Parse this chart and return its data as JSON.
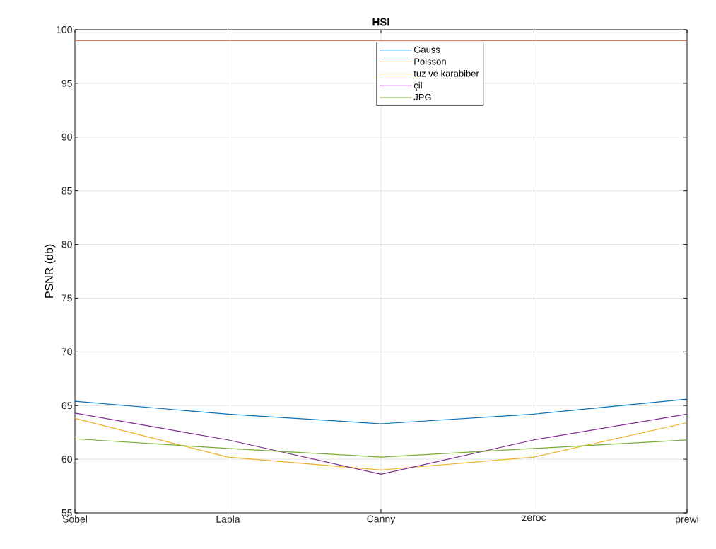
{
  "chart_data": {
    "type": "line",
    "title": "HSI",
    "ylabel": "PSNR (db)",
    "categories": [
      "Sobel",
      "Lapla",
      "Canny",
      "zeroc",
      "prewi"
    ],
    "series": [
      {
        "name": "Gauss",
        "color": "#0072bd",
        "values": [
          65.4,
          64.2,
          63.3,
          64.2,
          65.6
        ]
      },
      {
        "name": "Poisson",
        "color": "#d95319",
        "values": [
          99,
          99,
          99,
          99,
          99
        ]
      },
      {
        "name": "tuz ve karabiber",
        "color": "#edb120",
        "values": [
          63.8,
          60.2,
          59.0,
          60.2,
          63.4
        ]
      },
      {
        "name": "çil",
        "color": "#7e2f8e",
        "values": [
          64.3,
          61.8,
          58.6,
          61.8,
          64.2
        ]
      },
      {
        "name": "JPG",
        "color": "#77ac30",
        "values": [
          61.9,
          61.0,
          60.2,
          61.0,
          61.8
        ]
      }
    ],
    "ylim": [
      55,
      100
    ],
    "yticks": [
      55,
      60,
      65,
      70,
      75,
      80,
      85,
      90,
      95,
      100
    ],
    "grid": true,
    "legend": "top"
  }
}
